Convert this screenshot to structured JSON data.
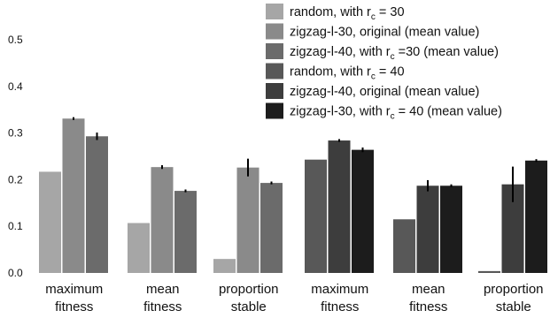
{
  "chart_data": {
    "type": "bar",
    "ylim": [
      0,
      0.5
    ],
    "yticks": [
      "0.0",
      "0.1",
      "0.2",
      "0.3",
      "0.4",
      "0.5"
    ],
    "grid": false,
    "legend_position": "top-right",
    "categories": [
      {
        "line1": "maximum",
        "line2": "fitness"
      },
      {
        "line1": "mean",
        "line2": "fitness"
      },
      {
        "line1": "proportion",
        "line2": "stable"
      },
      {
        "line1": "maximum",
        "line2": "fitness"
      },
      {
        "line1": "mean",
        "line2": "fitness"
      },
      {
        "line1": "proportion",
        "line2": "stable"
      }
    ],
    "series": [
      {
        "name_pre": "random, with r",
        "name_sub": "c",
        "name_post": " = 30",
        "color": "#a6a6a6"
      },
      {
        "name_pre": "zigzag-l-30, original (mean value)",
        "name_sub": "",
        "name_post": "",
        "color": "#8a8a8a"
      },
      {
        "name_pre": "zigzag-l-40, with r",
        "name_sub": "c",
        "name_post": " =30 (mean value)",
        "color": "#6b6b6b"
      },
      {
        "name_pre": "random, with r",
        "name_sub": "c",
        "name_post": "  = 40",
        "color": "#585858"
      },
      {
        "name_pre": "zigzag-l-40, original (mean value)",
        "name_sub": "",
        "name_post": "",
        "color": "#3d3d3d"
      },
      {
        "name_pre": "zigzag-l-30, with r",
        "name_sub": "c",
        "name_post": "  = 40 (mean value)",
        "color": "#1c1c1c"
      }
    ],
    "groups": [
      {
        "bars": [
          {
            "series": 0,
            "value": 0.217,
            "err": 0
          },
          {
            "series": 1,
            "value": 0.331,
            "err": 0.003
          },
          {
            "series": 2,
            "value": 0.293,
            "err": 0.008
          }
        ]
      },
      {
        "bars": [
          {
            "series": 0,
            "value": 0.107,
            "err": 0
          },
          {
            "series": 1,
            "value": 0.227,
            "err": 0.004
          },
          {
            "series": 2,
            "value": 0.176,
            "err": 0.003
          }
        ]
      },
      {
        "bars": [
          {
            "series": 0,
            "value": 0.03,
            "err": 0
          },
          {
            "series": 1,
            "value": 0.226,
            "err": 0.019
          },
          {
            "series": 2,
            "value": 0.193,
            "err": 0.003
          }
        ]
      },
      {
        "bars": [
          {
            "series": 3,
            "value": 0.243,
            "err": 0
          },
          {
            "series": 4,
            "value": 0.284,
            "err": 0.003
          },
          {
            "series": 5,
            "value": 0.264,
            "err": 0.005
          }
        ]
      },
      {
        "bars": [
          {
            "series": 3,
            "value": 0.115,
            "err": 0
          },
          {
            "series": 4,
            "value": 0.187,
            "err": 0.012
          },
          {
            "series": 5,
            "value": 0.187,
            "err": 0.003
          }
        ]
      },
      {
        "bars": [
          {
            "series": 3,
            "value": 0.004,
            "err": 0
          },
          {
            "series": 4,
            "value": 0.19,
            "err": 0.038
          },
          {
            "series": 5,
            "value": 0.241,
            "err": 0.003
          }
        ]
      }
    ]
  }
}
